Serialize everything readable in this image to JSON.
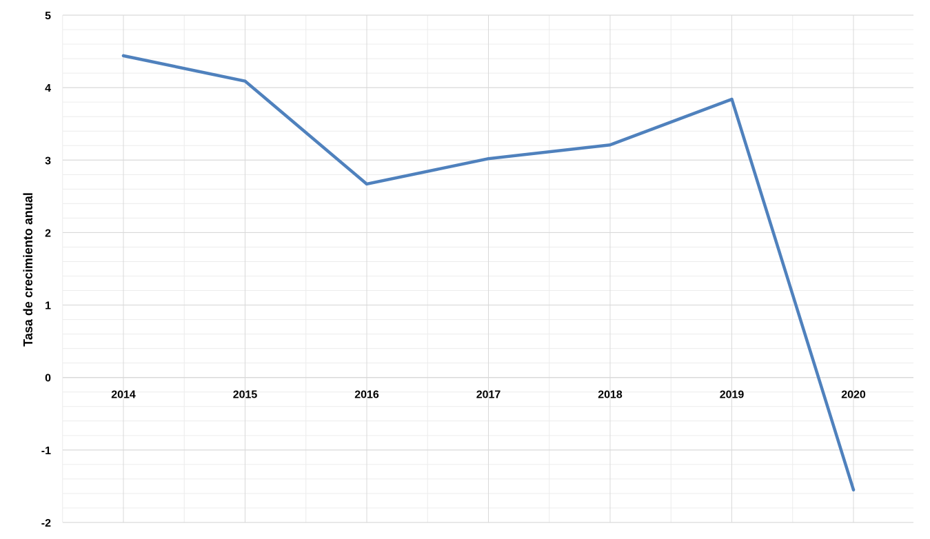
{
  "chart_data": {
    "type": "line",
    "title": "",
    "xlabel": "",
    "ylabel": "Tasa de crecimiento anual",
    "categories": [
      "2014",
      "2015",
      "2016",
      "2017",
      "2018",
      "2019",
      "2020"
    ],
    "series": [
      {
        "values": [
          4.44,
          4.09,
          2.67,
          3.02,
          3.21,
          3.84,
          -1.55
        ]
      }
    ],
    "ylim": [
      -2,
      5
    ],
    "yticks": [
      "5",
      "4",
      "3",
      "2",
      "1",
      "0",
      "-1",
      "-2"
    ],
    "grid": true,
    "minor_grid": true,
    "legend": "none",
    "line_color": "#4f81bd",
    "grid_color": "#d9d9d9",
    "minor_grid_color": "#ececec"
  }
}
